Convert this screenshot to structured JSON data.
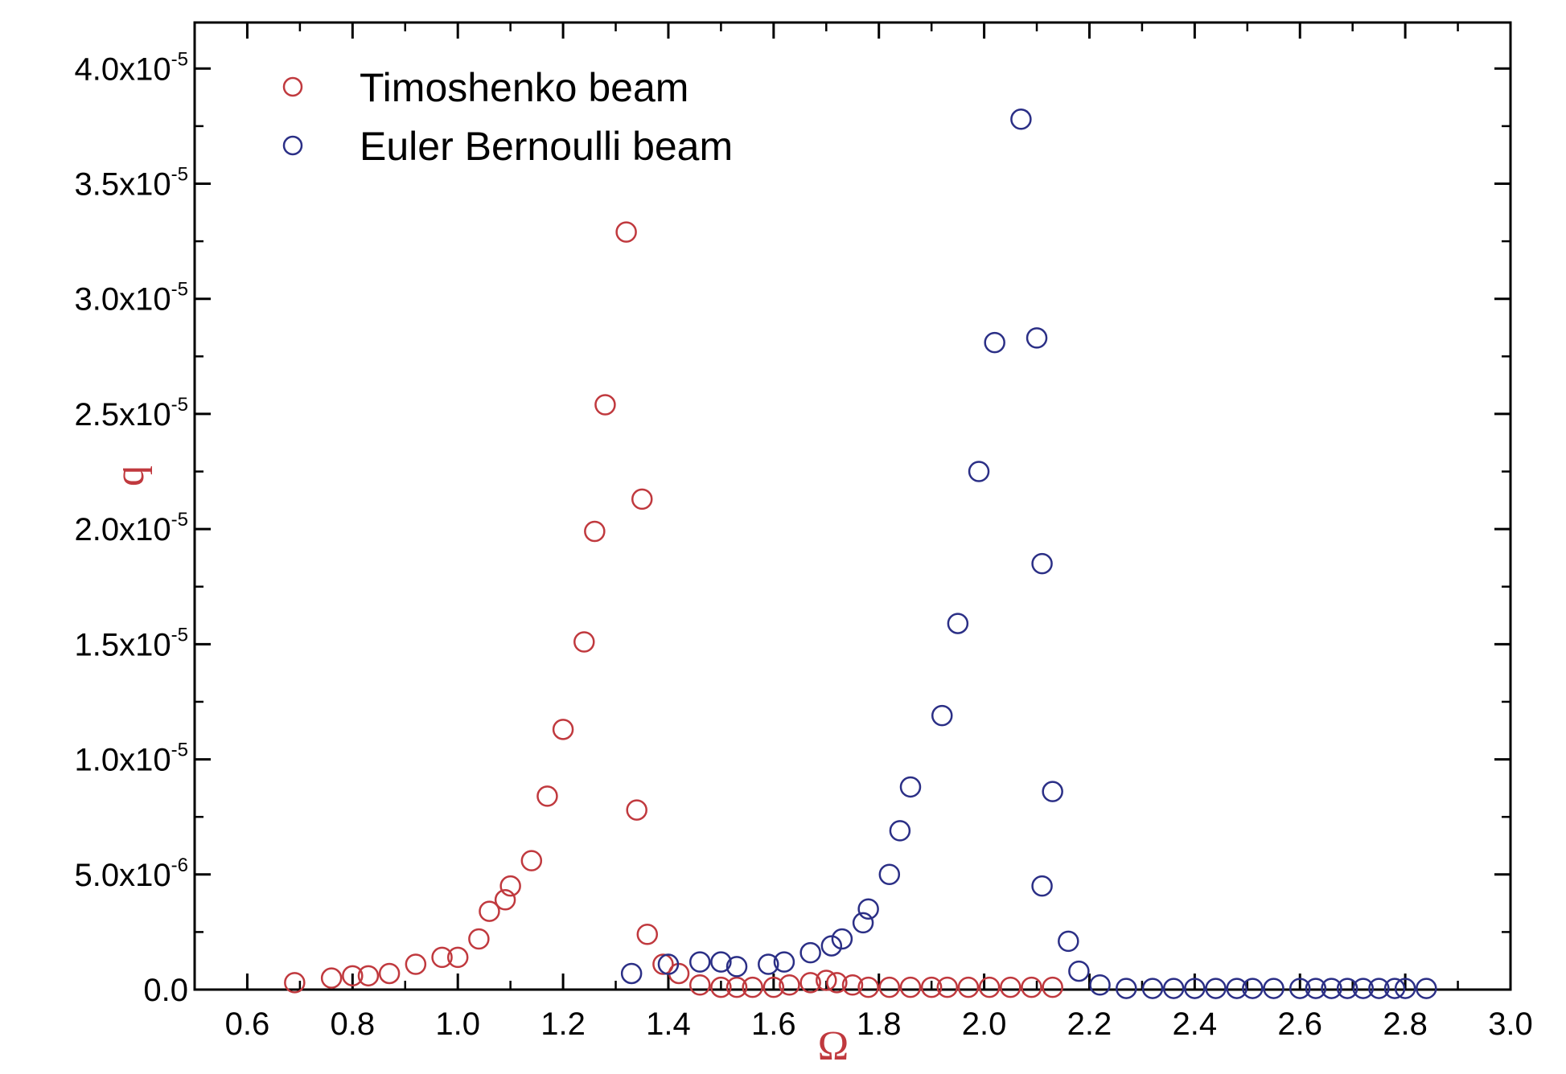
{
  "chart_data": {
    "type": "scatter",
    "xlabel": "Ω",
    "ylabel": "q",
    "xlim": [
      0.5,
      3.0
    ],
    "ylim": [
      0,
      4.2e-05
    ],
    "x_ticks": [
      "0.6",
      "0.8",
      "1.0",
      "1.2",
      "1.4",
      "1.6",
      "1.8",
      "2.0",
      "2.2",
      "2.4",
      "2.6",
      "2.8",
      "3.0"
    ],
    "y_ticks": [
      {
        "mantissa": "0.0",
        "exp": ""
      },
      {
        "mantissa": "5.0x10",
        "exp": "-6"
      },
      {
        "mantissa": "1.0x10",
        "exp": "-5"
      },
      {
        "mantissa": "1.5x10",
        "exp": "-5"
      },
      {
        "mantissa": "2.0x10",
        "exp": "-5"
      },
      {
        "mantissa": "2.5x10",
        "exp": "-5"
      },
      {
        "mantissa": "3.0x10",
        "exp": "-5"
      },
      {
        "mantissa": "3.5x10",
        "exp": "-5"
      },
      {
        "mantissa": "4.0x10",
        "exp": "-5"
      }
    ],
    "legend_position": "top-left",
    "grid": false,
    "series": [
      {
        "name": "Timoshenko beam",
        "color": "#c0393e",
        "marker": "open-circle",
        "points": [
          [
            0.69,
            3e-07
          ],
          [
            0.76,
            5e-07
          ],
          [
            0.8,
            6e-07
          ],
          [
            0.83,
            6e-07
          ],
          [
            0.87,
            7e-07
          ],
          [
            0.92,
            1.1e-06
          ],
          [
            0.97,
            1.4e-06
          ],
          [
            1.0,
            1.4e-06
          ],
          [
            1.04,
            2.2e-06
          ],
          [
            1.06,
            3.4e-06
          ],
          [
            1.09,
            3.9e-06
          ],
          [
            1.1,
            4.5e-06
          ],
          [
            1.14,
            5.6e-06
          ],
          [
            1.17,
            8.4e-06
          ],
          [
            1.2,
            1.13e-05
          ],
          [
            1.24,
            1.51e-05
          ],
          [
            1.26,
            1.99e-05
          ],
          [
            1.28,
            2.54e-05
          ],
          [
            1.32,
            3.29e-05
          ],
          [
            1.35,
            2.13e-05
          ],
          [
            1.34,
            7.8e-06
          ],
          [
            1.36,
            2.4e-06
          ],
          [
            1.39,
            1.1e-06
          ],
          [
            1.42,
            7e-07
          ],
          [
            1.46,
            2e-07
          ],
          [
            1.5,
            1e-07
          ],
          [
            1.53,
            1e-07
          ],
          [
            1.56,
            1e-07
          ],
          [
            1.6,
            1e-07
          ],
          [
            1.63,
            2e-07
          ],
          [
            1.67,
            3e-07
          ],
          [
            1.7,
            4e-07
          ],
          [
            1.72,
            3e-07
          ],
          [
            1.75,
            2e-07
          ],
          [
            1.78,
            1e-07
          ],
          [
            1.82,
            1e-07
          ],
          [
            1.86,
            1e-07
          ],
          [
            1.9,
            1e-07
          ],
          [
            1.93,
            1e-07
          ],
          [
            1.97,
            1e-07
          ],
          [
            2.01,
            1e-07
          ],
          [
            2.05,
            1e-07
          ],
          [
            2.09,
            1e-07
          ],
          [
            2.13,
            1e-07
          ]
        ]
      },
      {
        "name": "Euler Bernoulli beam",
        "color": "#2b2f86",
        "marker": "open-circle",
        "points": [
          [
            1.33,
            7e-07
          ],
          [
            1.4,
            1.1e-06
          ],
          [
            1.46,
            1.2e-06
          ],
          [
            1.5,
            1.2e-06
          ],
          [
            1.53,
            1e-06
          ],
          [
            1.59,
            1.1e-06
          ],
          [
            1.62,
            1.2e-06
          ],
          [
            1.67,
            1.6e-06
          ],
          [
            1.71,
            1.9e-06
          ],
          [
            1.73,
            2.2e-06
          ],
          [
            1.77,
            2.9e-06
          ],
          [
            1.78,
            3.5e-06
          ],
          [
            1.82,
            5e-06
          ],
          [
            1.84,
            6.9e-06
          ],
          [
            1.86,
            8.8e-06
          ],
          [
            1.92,
            1.19e-05
          ],
          [
            1.95,
            1.59e-05
          ],
          [
            1.99,
            2.25e-05
          ],
          [
            2.02,
            2.81e-05
          ],
          [
            2.07,
            3.78e-05
          ],
          [
            2.1,
            2.83e-05
          ],
          [
            2.11,
            1.85e-05
          ],
          [
            2.13,
            8.6e-06
          ],
          [
            2.11,
            4.5e-06
          ],
          [
            2.16,
            2.1e-06
          ],
          [
            2.18,
            8e-07
          ],
          [
            2.22,
            2e-07
          ],
          [
            2.27,
            5e-08
          ],
          [
            2.32,
            5e-08
          ],
          [
            2.36,
            5e-08
          ],
          [
            2.4,
            5e-08
          ],
          [
            2.44,
            5e-08
          ],
          [
            2.48,
            5e-08
          ],
          [
            2.51,
            5e-08
          ],
          [
            2.55,
            5e-08
          ],
          [
            2.6,
            5e-08
          ],
          [
            2.63,
            5e-08
          ],
          [
            2.66,
            5e-08
          ],
          [
            2.69,
            5e-08
          ],
          [
            2.72,
            5e-08
          ],
          [
            2.75,
            5e-08
          ],
          [
            2.78,
            5e-08
          ],
          [
            2.8,
            5e-08
          ],
          [
            2.84,
            5e-08
          ]
        ]
      }
    ]
  }
}
